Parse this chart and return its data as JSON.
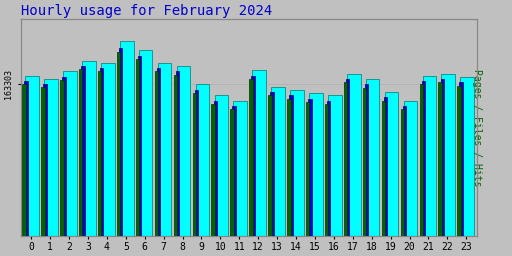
{
  "title": "Hourly usage for February 2024",
  "title_color": "#0000cc",
  "title_fontsize": 10,
  "hours": [
    0,
    1,
    2,
    3,
    4,
    5,
    6,
    7,
    8,
    9,
    10,
    11,
    12,
    13,
    14,
    15,
    16,
    17,
    18,
    19,
    20,
    21,
    22,
    23
  ],
  "hits_values": [
    148,
    145,
    152,
    162,
    160,
    180,
    172,
    160,
    157,
    140,
    130,
    125,
    153,
    138,
    135,
    132,
    130,
    150,
    145,
    133,
    125,
    148,
    150,
    147
  ],
  "files_values": [
    143,
    140,
    147,
    157,
    155,
    174,
    166,
    155,
    152,
    135,
    125,
    120,
    148,
    133,
    130,
    127,
    125,
    145,
    140,
    128,
    120,
    143,
    145,
    142
  ],
  "pages_values": [
    140,
    138,
    144,
    154,
    152,
    170,
    163,
    152,
    149,
    132,
    122,
    117,
    145,
    130,
    127,
    124,
    122,
    142,
    137,
    125,
    117,
    140,
    142,
    139
  ],
  "bar_color_hits": "#00ffff",
  "bar_color_files": "#0000dd",
  "bar_color_pages": "#006400",
  "background_color": "#c0c0c0",
  "plot_bg_color": "#c0c0c0",
  "ytick_label": "163303",
  "ylim_min": 0,
  "ylim_max": 200,
  "ylabel_right": "Pages / Files / Hits"
}
